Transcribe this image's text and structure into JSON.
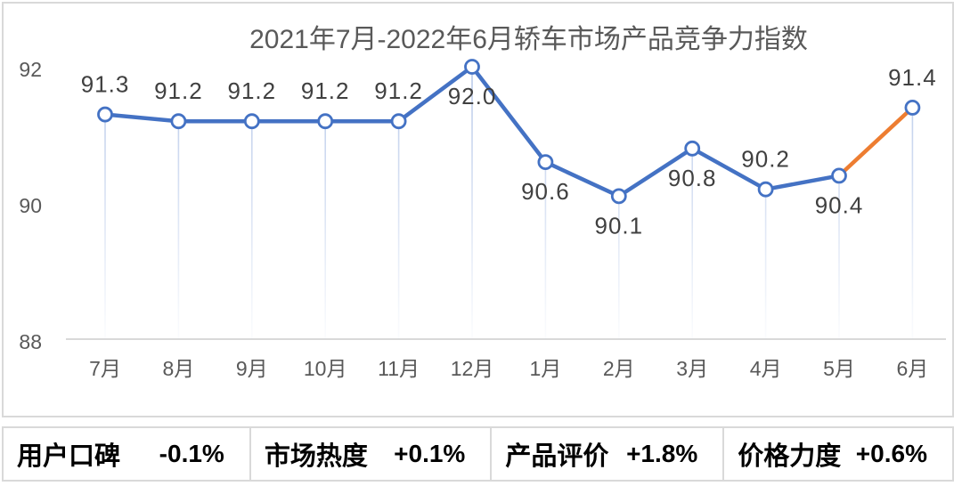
{
  "chart_data": {
    "type": "line",
    "title": "2021年7月-2022年6月轿车市场产品竞争力指数",
    "categories": [
      "7月",
      "8月",
      "9月",
      "10月",
      "11月",
      "12月",
      "1月",
      "2月",
      "3月",
      "4月",
      "5月",
      "6月"
    ],
    "values": [
      91.3,
      91.2,
      91.2,
      91.2,
      91.2,
      92.0,
      90.6,
      90.1,
      90.8,
      90.2,
      90.4,
      91.4
    ],
    "label_positions": [
      "above",
      "above",
      "above",
      "above",
      "above",
      "below",
      "below",
      "below",
      "below",
      "above",
      "below",
      "above"
    ],
    "ylim": [
      88,
      92
    ],
    "yticks": [
      92,
      90,
      88
    ],
    "xlabel": "",
    "ylabel": "",
    "grid": false,
    "legend_position": "none",
    "line_color": "#4472C4",
    "highlight_segment": {
      "from": "5月",
      "to": "6月",
      "color": "#ED7D31"
    },
    "marker": {
      "fill": "#FFFFFF",
      "stroke": "#4472C4"
    },
    "drop_line_color": "#B8C9E9",
    "drop_line_fade": true,
    "axis_color": "#D9D9D9"
  },
  "stats_bar": {
    "items": [
      {
        "label": "用户口碑",
        "value": "-0.1%"
      },
      {
        "label": "市场热度",
        "value": "+0.1%"
      },
      {
        "label": "产品评价",
        "value": "+1.8%"
      },
      {
        "label": "价格力度",
        "value": "+0.6%"
      }
    ]
  }
}
